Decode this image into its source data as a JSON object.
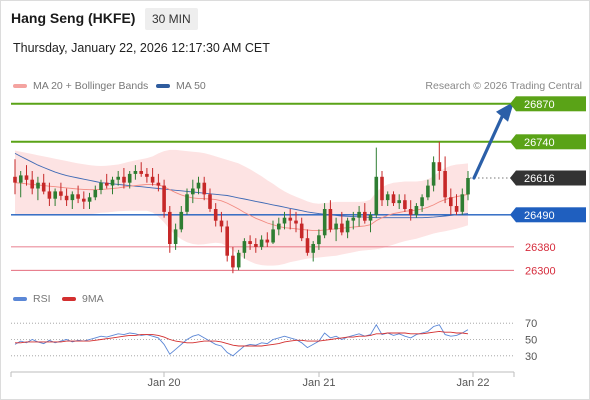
{
  "header": {
    "title": "Hang Seng (HKFE)",
    "interval": "30 MIN",
    "datetime": "Thursday, January 22, 2026 12:17:30 AM CET"
  },
  "legend": {
    "ma20_label": "MA 20 + Bollinger Bands",
    "ma50_label": "MA 50",
    "copyright": "Research © 2026 Trading Central"
  },
  "rsi_legend": {
    "rsi_label": "RSI",
    "ma_label": "9MA"
  },
  "colors": {
    "bull": "#2e7d32",
    "bear": "#c62828",
    "band_fill": "#fde3e3",
    "ma20": "#f28b82",
    "ma50": "#3f6ab5",
    "resistance": "#5aa317",
    "pivot": "#1f5fbf",
    "support": "#e0566a",
    "current": "#333333",
    "arrow": "#2b5fa8",
    "rsi": "#5b87d6",
    "rsi_ma": "#d32f2f"
  },
  "icons": {
    "arrow": "up-right-arrow-icon"
  },
  "chart_data": [
    {
      "type": "candlestick",
      "title": "Hang Seng (HKFE)",
      "ylim": [
        26260,
        26900
      ],
      "x_ticks": [
        "Jan 20",
        "Jan 21",
        "Jan 22"
      ],
      "levels": [
        {
          "role": "resistance",
          "value": "26870",
          "style": "solid"
        },
        {
          "role": "resistance",
          "value": "26740",
          "style": "solid"
        },
        {
          "role": "current",
          "value": "26616",
          "style": "dotted"
        },
        {
          "role": "pivot",
          "value": "26490",
          "style": "solid"
        },
        {
          "role": "support",
          "value": "26380",
          "style": "thin"
        },
        {
          "role": "support",
          "value": "26300",
          "style": "thin"
        }
      ],
      "ohlc": [
        [
          26620,
          26680,
          26560,
          26600
        ],
        [
          26600,
          26640,
          26550,
          26625
        ],
        [
          26625,
          26660,
          26590,
          26610
        ],
        [
          26610,
          26640,
          26560,
          26580
        ],
        [
          26580,
          26620,
          26540,
          26600
        ],
        [
          26600,
          26630,
          26560,
          26570
        ],
        [
          26570,
          26600,
          26520,
          26545
        ],
        [
          26545,
          26580,
          26520,
          26570
        ],
        [
          26570,
          26600,
          26540,
          26555
        ],
        [
          26555,
          26580,
          26520,
          26540
        ],
        [
          26540,
          26570,
          26510,
          26560
        ],
        [
          26560,
          26590,
          26530,
          26545
        ],
        [
          26545,
          26570,
          26510,
          26535
        ],
        [
          26535,
          26565,
          26510,
          26550
        ],
        [
          26550,
          26590,
          26540,
          26575
        ],
        [
          26575,
          26610,
          26560,
          26600
        ],
        [
          26600,
          26630,
          26580,
          26590
        ],
        [
          26590,
          26620,
          26560,
          26610
        ],
        [
          26610,
          26640,
          26590,
          26620
        ],
        [
          26620,
          26650,
          26580,
          26600
        ],
        [
          26600,
          26640,
          26580,
          26630
        ],
        [
          26630,
          26660,
          26610,
          26640
        ],
        [
          26640,
          26670,
          26620,
          26630
        ],
        [
          26630,
          26650,
          26600,
          26620
        ],
        [
          26620,
          26650,
          26590,
          26600
        ],
        [
          26600,
          26630,
          26570,
          26590
        ],
        [
          26590,
          26610,
          26480,
          26500
        ],
        [
          26500,
          26520,
          26360,
          26390
        ],
        [
          26390,
          26460,
          26370,
          26440
        ],
        [
          26440,
          26520,
          26430,
          26500
        ],
        [
          26500,
          26580,
          26490,
          26560
        ],
        [
          26560,
          26610,
          26530,
          26580
        ],
        [
          26580,
          26620,
          26560,
          26600
        ],
        [
          26600,
          26620,
          26540,
          26560
        ],
        [
          26560,
          26580,
          26500,
          26510
        ],
        [
          26510,
          26530,
          26450,
          26470
        ],
        [
          26470,
          26500,
          26430,
          26450
        ],
        [
          26450,
          26470,
          26330,
          26350
        ],
        [
          26350,
          26380,
          26290,
          26310
        ],
        [
          26310,
          26370,
          26300,
          26360
        ],
        [
          26360,
          26410,
          26340,
          26400
        ],
        [
          26400,
          26420,
          26370,
          26390
        ],
        [
          26390,
          26410,
          26360,
          26380
        ],
        [
          26380,
          26420,
          26370,
          26405
        ],
        [
          26405,
          26430,
          26380,
          26395
        ],
        [
          26395,
          26470,
          26390,
          26440
        ],
        [
          26440,
          26480,
          26420,
          26460
        ],
        [
          26460,
          26500,
          26440,
          26480
        ],
        [
          26480,
          26510,
          26440,
          26470
        ],
        [
          26470,
          26500,
          26430,
          26460
        ],
        [
          26460,
          26480,
          26400,
          26410
        ],
        [
          26410,
          26440,
          26350,
          26360
        ],
        [
          26360,
          26400,
          26330,
          26390
        ],
        [
          26390,
          26440,
          26370,
          26420
        ],
        [
          26420,
          26530,
          26410,
          26510
        ],
        [
          26510,
          26540,
          26430,
          26440
        ],
        [
          26440,
          26480,
          26400,
          26460
        ],
        [
          26460,
          26500,
          26420,
          26430
        ],
        [
          26430,
          26480,
          26410,
          26470
        ],
        [
          26470,
          26500,
          26440,
          26480
        ],
        [
          26480,
          26520,
          26450,
          26500
        ],
        [
          26500,
          26530,
          26460,
          26470
        ],
        [
          26470,
          26500,
          26430,
          26490
        ],
        [
          26490,
          26720,
          26480,
          26620
        ],
        [
          26620,
          26640,
          26520,
          26540
        ],
        [
          26540,
          26570,
          26520,
          26560
        ],
        [
          26560,
          26570,
          26520,
          26530
        ],
        [
          26530,
          26560,
          26510,
          26540
        ],
        [
          26540,
          26560,
          26500,
          26510
        ],
        [
          26510,
          26540,
          26470,
          26490
        ],
        [
          26490,
          26530,
          26480,
          26520
        ],
        [
          26520,
          26560,
          26500,
          26550
        ],
        [
          26550,
          26610,
          26540,
          26590
        ],
        [
          26590,
          26690,
          26570,
          26670
        ],
        [
          26670,
          26740,
          26610,
          26640
        ],
        [
          26640,
          26690,
          26530,
          26550
        ],
        [
          26550,
          26580,
          26490,
          26520
        ],
        [
          26520,
          26560,
          26490,
          26500
        ],
        [
          26500,
          26580,
          26490,
          26560
        ],
        [
          26560,
          26640,
          26540,
          26616
        ]
      ],
      "ma20": [
        26600,
        26598,
        26596,
        26594,
        26592,
        26590,
        26588,
        26586,
        26584,
        26582,
        26580,
        26578,
        26577,
        26576,
        26576,
        26577,
        26578,
        26580,
        26582,
        26585,
        26588,
        26590,
        26592,
        26594,
        26594,
        26592,
        26586,
        26576,
        26566,
        26558,
        26552,
        26548,
        26546,
        26545,
        26544,
        26542,
        26538,
        26530,
        26520,
        26510,
        26498,
        26488,
        26478,
        26470,
        26462,
        26456,
        26450,
        26446,
        26444,
        26442,
        26440,
        26438,
        26436,
        26436,
        26438,
        26440,
        26442,
        26444,
        26446,
        26448,
        26450,
        26452,
        26456,
        26470,
        26480,
        26488,
        26494,
        26498,
        26502,
        26504,
        26506,
        26510,
        26516,
        26524,
        26534,
        26542,
        26548,
        26552,
        26556,
        26560
      ],
      "ma50": [
        26700,
        26690,
        26680,
        26670,
        26660,
        26652,
        26644,
        26636,
        26630,
        26624,
        26620,
        26616,
        26612,
        26608,
        26604,
        26600,
        26598,
        26596,
        26594,
        26592,
        26590,
        26588,
        26586,
        26584,
        26582,
        26580,
        26578,
        26576,
        26574,
        26572,
        26570,
        26568,
        26566,
        26564,
        26562,
        26560,
        26558,
        26556,
        26552,
        26548,
        26544,
        26540,
        26536,
        26532,
        26528,
        26524,
        26520,
        26516,
        26512,
        26508,
        26504,
        26500,
        26497,
        26494,
        26492,
        26490,
        26488,
        26486,
        26485,
        26484,
        26483,
        26482,
        26481,
        26480,
        26480,
        26480,
        26480,
        26480,
        26480,
        26480,
        26480,
        26480,
        26481,
        26482,
        26484,
        26486,
        26488,
        26490,
        26492,
        26494
      ],
      "band_width": [
        110,
        108,
        106,
        104,
        102,
        100,
        98,
        96,
        94,
        92,
        90,
        88,
        86,
        84,
        82,
        80,
        80,
        80,
        80,
        82,
        84,
        86,
        88,
        90,
        96,
        108,
        122,
        136,
        146,
        152,
        156,
        158,
        158,
        156,
        152,
        148,
        146,
        148,
        152,
        156,
        158,
        158,
        156,
        152,
        146,
        140,
        132,
        124,
        116,
        110,
        104,
        98,
        94,
        92,
        92,
        92,
        92,
        90,
        88,
        86,
        84,
        84,
        86,
        98,
        104,
        106,
        106,
        104,
        102,
        100,
        98,
        96,
        96,
        98,
        104,
        108,
        110,
        110,
        108,
        106
      ]
    },
    {
      "type": "line",
      "title": "RSI",
      "ylim": [
        15,
        85
      ],
      "y_ticks": [
        "70",
        "50",
        "30"
      ],
      "series": [
        {
          "name": "RSI",
          "values": [
            44,
            48,
            46,
            50,
            47,
            45,
            49,
            46,
            48,
            50,
            47,
            49,
            48,
            50,
            52,
            54,
            53,
            55,
            57,
            56,
            58,
            57,
            55,
            56,
            54,
            52,
            44,
            32,
            38,
            44,
            50,
            54,
            56,
            52,
            48,
            44,
            42,
            34,
            30,
            36,
            42,
            44,
            43,
            46,
            45,
            50,
            52,
            54,
            52,
            50,
            46,
            40,
            44,
            48,
            58,
            52,
            54,
            50,
            53,
            55,
            57,
            54,
            56,
            68,
            56,
            58,
            55,
            57,
            54,
            52,
            56,
            58,
            60,
            66,
            68,
            56,
            54,
            55,
            58,
            62
          ]
        },
        {
          "name": "9MA",
          "values": [
            46,
            46,
            47,
            47,
            47,
            47,
            47,
            47,
            47,
            48,
            48,
            48,
            48,
            48,
            49,
            50,
            51,
            52,
            53,
            54,
            55,
            55,
            56,
            56,
            56,
            55,
            53,
            50,
            48,
            47,
            46,
            46,
            47,
            48,
            48,
            48,
            47,
            45,
            43,
            42,
            42,
            42,
            42,
            42,
            43,
            44,
            45,
            47,
            48,
            49,
            49,
            48,
            48,
            48,
            49,
            50,
            51,
            52,
            53,
            53,
            54,
            54,
            55,
            57,
            57,
            58,
            58,
            58,
            58,
            57,
            57,
            57,
            58,
            59,
            60,
            59,
            59,
            58,
            58,
            57
          ]
        }
      ]
    }
  ]
}
